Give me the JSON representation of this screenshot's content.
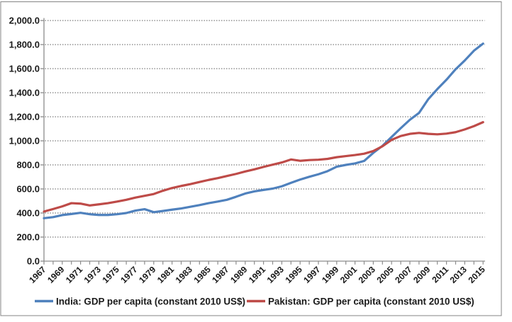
{
  "figure": {
    "background_color": "#ffffff",
    "border_color": "#848484"
  },
  "chart_data": {
    "type": "line",
    "title": "",
    "xlabel": "",
    "ylabel": "",
    "ylim": [
      0,
      2000
    ],
    "y_tick_interval": 200,
    "grid": "horizontal-dotted",
    "grid_color": "#757575",
    "axis_color": "#8c8c8c",
    "legend_position": "bottom-center",
    "x": [
      1967,
      1968,
      1969,
      1970,
      1971,
      1972,
      1973,
      1974,
      1975,
      1976,
      1977,
      1978,
      1979,
      1980,
      1981,
      1982,
      1983,
      1984,
      1985,
      1986,
      1987,
      1988,
      1989,
      1990,
      1991,
      1992,
      1993,
      1994,
      1995,
      1996,
      1997,
      1998,
      1999,
      2000,
      2001,
      2002,
      2003,
      2004,
      2005,
      2006,
      2007,
      2008,
      2009,
      2010,
      2011,
      2012,
      2013,
      2014,
      2015
    ],
    "x_tick_labels": [
      "1967",
      "1969",
      "1971",
      "1973",
      "1975",
      "1977",
      "1979",
      "1981",
      "1983",
      "1985",
      "1987",
      "1989",
      "1991",
      "1993",
      "1995",
      "1997",
      "1999",
      "2001",
      "2003",
      "2005",
      "2007",
      "2009",
      "2011",
      "2013",
      "2015"
    ],
    "y_tick_labels": [
      "0.0",
      "200.0",
      "400.0",
      "600.0",
      "800.0",
      "1,000.0",
      "1,200.0",
      "1,400.0",
      "1,600.0",
      "1,800.0",
      "2,000.0"
    ],
    "series": [
      {
        "name": "India: GDP per capita (constant 2010 US$)",
        "color": "#4F81BD",
        "values": [
          357,
          366,
          383,
          392,
          402,
          390,
          384,
          384,
          390,
          400,
          420,
          432,
          407,
          417,
          428,
          438,
          452,
          466,
          482,
          495,
          510,
          535,
          562,
          580,
          592,
          603,
          622,
          651,
          678,
          701,
          722,
          748,
          785,
          800,
          812,
          833,
          900,
          958,
          1032,
          1105,
          1175,
          1232,
          1345,
          1430,
          1508,
          1595,
          1668,
          1749,
          1808
        ]
      },
      {
        "name": "Pakistan: GDP per capita (constant 2010 US$)",
        "color": "#BE4B48",
        "values": [
          412,
          433,
          455,
          482,
          478,
          463,
          472,
          482,
          495,
          510,
          528,
          543,
          558,
          585,
          608,
          625,
          640,
          658,
          675,
          690,
          708,
          725,
          745,
          763,
          783,
          802,
          820,
          845,
          834,
          840,
          843,
          850,
          864,
          873,
          882,
          893,
          915,
          955,
          1008,
          1040,
          1058,
          1066,
          1058,
          1054,
          1060,
          1072,
          1095,
          1122,
          1155
        ]
      }
    ]
  }
}
